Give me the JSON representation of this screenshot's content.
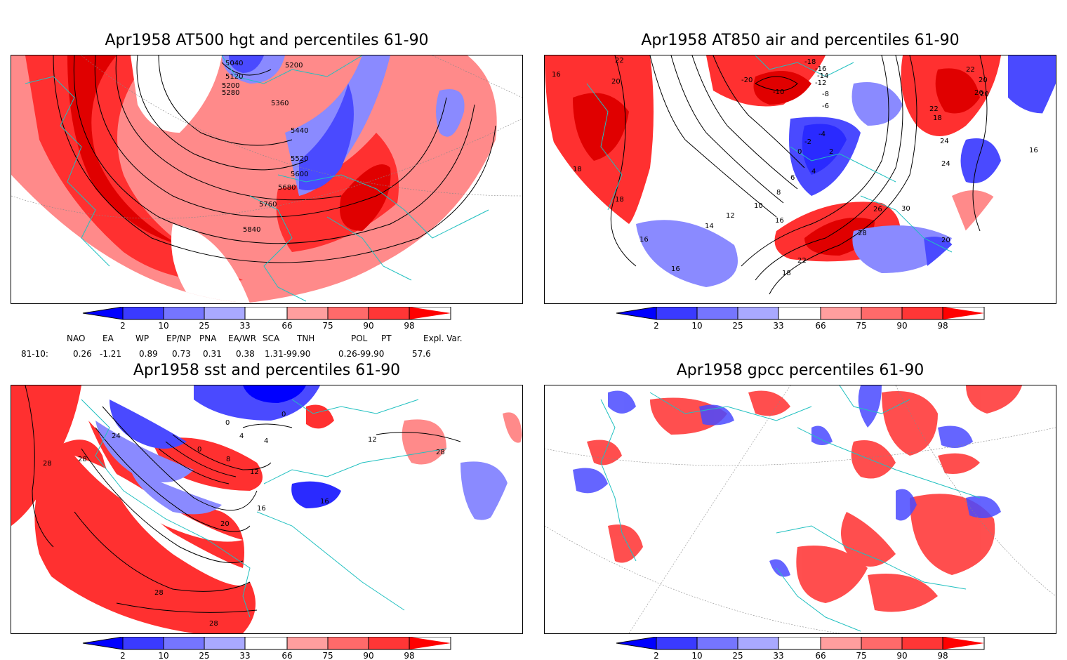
{
  "panels": [
    {
      "title": "Apr1958 AT500 hgt and percentiles 61-90",
      "contour_labels": [
        "5040",
        "5120",
        "5200",
        "5280",
        "5200",
        "5360",
        "5440",
        "5520",
        "5600",
        "5680",
        "5760",
        "5840"
      ]
    },
    {
      "title": "Apr1958 AT850 air and percentiles 61-90",
      "contour_labels": [
        "22",
        "16",
        "20",
        "18",
        "18",
        "16",
        "16",
        "-20",
        "-10",
        "-18",
        "-16",
        "-14",
        "-12",
        "-8",
        "-6",
        "-4",
        "-2",
        "0",
        "2",
        "4",
        "6",
        "8",
        "10",
        "12",
        "14",
        "16",
        "18",
        "20",
        "22",
        "24",
        "26",
        "28",
        "30",
        "26",
        "22",
        "20",
        "24",
        "22",
        "16",
        "18",
        "20"
      ]
    },
    {
      "title": "Apr1958 sst and percentiles 61-90",
      "contour_labels": [
        "28",
        "28",
        "24",
        "0",
        "0",
        "4",
        "0",
        "4",
        "8",
        "12",
        "16",
        "20",
        "28",
        "28",
        "16",
        "12",
        "28"
      ]
    },
    {
      "title": "Apr1958 gpcc percentiles 61-90",
      "contour_labels": []
    }
  ],
  "colorbar": {
    "ticks": [
      "2",
      "10",
      "25",
      "33",
      "66",
      "75",
      "90",
      "98"
    ],
    "colors": {
      "c1": "#0000ff",
      "c2": "#3a3aff",
      "c3": "#7575ff",
      "c4": "#a9a9ff",
      "w": "#ffffff",
      "r1": "#ff9e9e",
      "r2": "#ff6a6a",
      "r3": "#ff3636",
      "r4": "#ff0000"
    }
  },
  "stats": {
    "headers": [
      "NAO",
      "EA",
      "WP",
      "EP/NP",
      "PNA",
      "EA/WR",
      "SCA",
      "TNH",
      "POL",
      "PT",
      "Expl. Var."
    ],
    "row_label": "81-10:",
    "values": [
      "0.26",
      "-1.21",
      "0.89",
      "0.73",
      "0.31",
      "0.38",
      "1.31-99.90",
      "0.26-99.90",
      "57.6"
    ]
  },
  "map_colors": {
    "coast": "#20c0c0",
    "grid": "#888888",
    "contour": "#000000",
    "blue": "#4a4aff",
    "lightblue": "#8a8aff",
    "red": "#ff3030",
    "lightred": "#ff8a8a",
    "darkred": "#e00000"
  }
}
